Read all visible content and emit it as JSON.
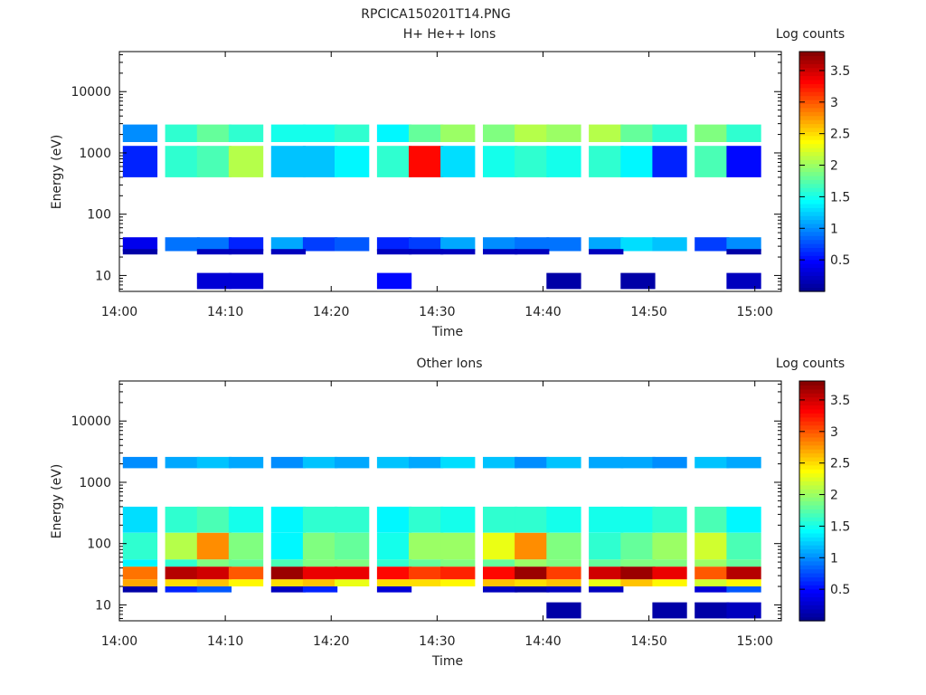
{
  "page_title": "RPCICA150201T14.PNG",
  "colors": {
    "jet": [
      "#00008f",
      "#0000ff",
      "#0080ff",
      "#00ffff",
      "#80ff80",
      "#ffff00",
      "#ff8000",
      "#ff0000",
      "#800000"
    ],
    "axis": "#000000",
    "background": "#ffffff"
  },
  "chart_data": [
    {
      "type": "heatmap",
      "title": "H+ He++ Ions",
      "xlabel": "Time",
      "ylabel": "Energy (eV)",
      "y_scale": "log",
      "ylim": [
        5.5,
        45000
      ],
      "xlim": [
        "14:00",
        "15:00"
      ],
      "xticks": [
        "14:00",
        "14:10",
        "14:20",
        "14:30",
        "14:40",
        "14:50",
        "15:00"
      ],
      "yticks": [
        "10",
        "100",
        "1000",
        "10000"
      ],
      "colorbar": {
        "label": "Log counts",
        "range": [
          0,
          3.8
        ],
        "ticks": [
          "0.5",
          "1",
          "1.5",
          "2",
          "2.5",
          "3",
          "3.5"
        ]
      },
      "time_bins": [
        "14:02",
        "14:06",
        "14:09",
        "14:12",
        "14:16",
        "14:19",
        "14:22",
        "14:26",
        "14:29",
        "14:32",
        "14:36",
        "14:39",
        "14:42",
        "14:46",
        "14:49",
        "14:52",
        "14:56",
        "14:59"
      ],
      "bands": [
        {
          "e_low": 1500,
          "e_high": 2900,
          "values": [
            1.0,
            1.6,
            1.8,
            1.6,
            1.5,
            1.5,
            1.6,
            1.4,
            1.8,
            2.0,
            1.9,
            2.1,
            2.0,
            2.1,
            1.8,
            1.6,
            1.9,
            1.6
          ]
        },
        {
          "e_low": 400,
          "e_high": 1300,
          "values": [
            0.6,
            1.6,
            1.7,
            2.1,
            1.2,
            1.2,
            1.4,
            1.6,
            3.3,
            1.3,
            1.5,
            1.6,
            1.5,
            1.6,
            1.4,
            0.6,
            1.7,
            0.5
          ]
        },
        {
          "e_low": 25,
          "e_high": 42,
          "values": [
            0.4,
            0.9,
            0.9,
            0.6,
            1.1,
            0.7,
            0.8,
            0.6,
            0.7,
            1.1,
            1.0,
            0.9,
            0.9,
            1.1,
            1.3,
            1.2,
            0.7,
            1.0
          ]
        },
        {
          "e_low": 22,
          "e_high": 27,
          "values": [
            0.1,
            null,
            0.2,
            0.2,
            0.2,
            null,
            null,
            0.2,
            0.2,
            0.2,
            0.2,
            0.2,
            null,
            0.2,
            null,
            null,
            null,
            0.1
          ]
        },
        {
          "e_low": 6,
          "e_high": 11,
          "values": [
            null,
            null,
            0.3,
            0.3,
            null,
            null,
            null,
            0.5,
            null,
            null,
            null,
            null,
            0.1,
            null,
            0.1,
            null,
            null,
            0.2
          ]
        }
      ]
    },
    {
      "type": "heatmap",
      "title": "Other Ions",
      "xlabel": "Time",
      "ylabel": "Energy (eV)",
      "y_scale": "log",
      "ylim": [
        5.5,
        45000
      ],
      "xlim": [
        "14:00",
        "15:00"
      ],
      "xticks": [
        "14:00",
        "14:10",
        "14:20",
        "14:30",
        "14:40",
        "14:50",
        "15:00"
      ],
      "yticks": [
        "10",
        "100",
        "1000",
        "10000"
      ],
      "colorbar": {
        "label": "Log counts",
        "range": [
          0,
          3.8
        ],
        "ticks": [
          "0.5",
          "1",
          "1.5",
          "2",
          "2.5",
          "3",
          "3.5"
        ]
      },
      "time_bins": [
        "14:02",
        "14:06",
        "14:09",
        "14:12",
        "14:16",
        "14:19",
        "14:22",
        "14:26",
        "14:29",
        "14:32",
        "14:36",
        "14:39",
        "14:42",
        "14:46",
        "14:49",
        "14:52",
        "14:56",
        "14:59"
      ],
      "bands": [
        {
          "e_low": 1700,
          "e_high": 2600,
          "values": [
            1.0,
            1.1,
            1.2,
            1.1,
            1.0,
            1.2,
            1.1,
            1.2,
            1.1,
            1.3,
            1.2,
            1.0,
            1.2,
            1.1,
            1.1,
            1.0,
            1.2,
            1.1
          ]
        },
        {
          "e_low": 150,
          "e_high": 400,
          "values": [
            1.3,
            1.6,
            1.7,
            1.5,
            1.4,
            1.6,
            1.6,
            1.4,
            1.6,
            1.5,
            1.6,
            1.6,
            1.5,
            1.5,
            1.5,
            1.6,
            1.7,
            1.4
          ]
        },
        {
          "e_low": 55,
          "e_high": 150,
          "values": [
            1.6,
            2.1,
            2.8,
            1.9,
            1.4,
            1.9,
            1.8,
            1.5,
            2.0,
            2.0,
            2.3,
            2.8,
            1.9,
            1.6,
            1.8,
            2.0,
            2.2,
            1.7
          ]
        },
        {
          "e_low": 42,
          "e_high": 55,
          "values": [
            1.4,
            1.6,
            1.9,
            1.8,
            1.7,
            1.9,
            1.9,
            1.6,
            1.8,
            1.9,
            1.8,
            2.0,
            1.9,
            1.8,
            1.9,
            1.9,
            2.0,
            1.8
          ]
        },
        {
          "e_low": 26,
          "e_high": 42,
          "values": [
            2.9,
            3.6,
            3.5,
            3.0,
            3.7,
            3.4,
            3.4,
            3.3,
            3.1,
            3.2,
            3.3,
            3.7,
            3.1,
            3.5,
            3.7,
            3.4,
            3.0,
            3.6
          ]
        },
        {
          "e_low": 20,
          "e_high": 26,
          "values": [
            2.7,
            2.5,
            2.6,
            2.4,
            2.5,
            2.6,
            2.3,
            2.5,
            2.5,
            2.4,
            2.6,
            2.5,
            2.6,
            2.3,
            2.6,
            2.4,
            2.2,
            2.4
          ]
        },
        {
          "e_low": 16,
          "e_high": 20,
          "values": [
            0.1,
            0.6,
            0.8,
            null,
            0.2,
            0.6,
            null,
            0.3,
            null,
            null,
            0.2,
            0.1,
            0.2,
            0.2,
            null,
            null,
            0.3,
            0.8
          ]
        },
        {
          "e_low": 6,
          "e_high": 11,
          "values": [
            null,
            null,
            null,
            null,
            null,
            null,
            null,
            null,
            null,
            null,
            null,
            null,
            0.1,
            null,
            null,
            0.1,
            0.1,
            0.2
          ]
        }
      ]
    }
  ]
}
